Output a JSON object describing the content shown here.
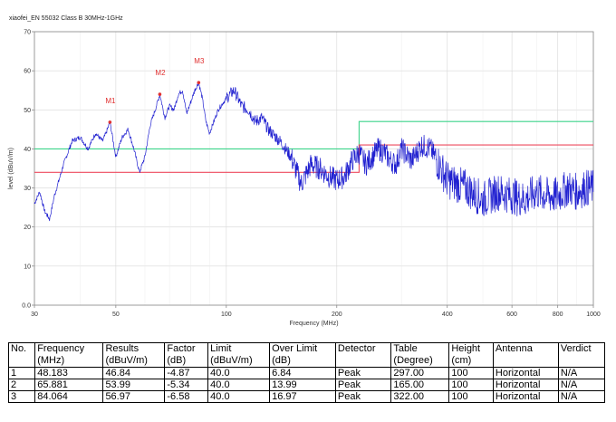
{
  "chart_data": {
    "type": "line",
    "title": "xiaofei_EN 55032 Class B 30MHz-1GHz",
    "xlabel": "Frequency (MHz)",
    "ylabel": "level (dBuV/m)",
    "xscale": "log",
    "xlim": [
      30,
      1000
    ],
    "ylim": [
      0,
      70
    ],
    "yticks": [
      0,
      10,
      20,
      30,
      40,
      50,
      60,
      70
    ],
    "xticks": [
      30,
      50,
      100,
      200,
      400,
      600,
      800,
      1000
    ],
    "ytick_labels": [
      "0.0",
      "10",
      "20",
      "30",
      "40",
      "50",
      "60",
      "70"
    ],
    "xtick_labels": [
      "30",
      "50",
      "100",
      "200",
      "400",
      "600",
      "800",
      "1000"
    ],
    "grid": true,
    "colors": {
      "trace": "#2020d0",
      "limit": "#3cd48a",
      "limit_margin": "#ee4a5e",
      "marker": "#e03030"
    },
    "series": [
      {
        "kind": "trace",
        "x": [
          30,
          31,
          32,
          33,
          34,
          35,
          36,
          38,
          40,
          42,
          44,
          46,
          47,
          48.183,
          50,
          52,
          54,
          56,
          58,
          60,
          62,
          64,
          65.881,
          68,
          70,
          72,
          74,
          76,
          78,
          80,
          82,
          84.064,
          86,
          88,
          90,
          95,
          100,
          105,
          110,
          115,
          120,
          125,
          130,
          140,
          150,
          160,
          170,
          180,
          190,
          200,
          210,
          220,
          230,
          240,
          250,
          260,
          270,
          280,
          290,
          300,
          320,
          340,
          360,
          380,
          400,
          450,
          500,
          550,
          600,
          650,
          700,
          750,
          800,
          850,
          900,
          950,
          1000
        ],
        "y": [
          26,
          29,
          24,
          22,
          28,
          32,
          36,
          42,
          43,
          40,
          44,
          42,
          44,
          46.84,
          38,
          43,
          45,
          40,
          34,
          38,
          46,
          50,
          53.99,
          48,
          51,
          50,
          54,
          55,
          49,
          52,
          55,
          56.97,
          53,
          47,
          44,
          50,
          53,
          55,
          51,
          50,
          47,
          48,
          45,
          42,
          38,
          31,
          36,
          35,
          33,
          32,
          33,
          37,
          39,
          36,
          38,
          40,
          39,
          37,
          36,
          40,
          37,
          41,
          40,
          36,
          32,
          30,
          27,
          29,
          28,
          27,
          29,
          28,
          28,
          30,
          29,
          30,
          30
        ]
      },
      {
        "kind": "limit",
        "x": [
          30,
          230,
          230,
          1000
        ],
        "y": [
          40,
          40,
          47,
          47
        ]
      },
      {
        "kind": "limit_margin",
        "x": [
          30,
          230,
          230,
          1000
        ],
        "y": [
          34,
          34,
          41,
          41
        ]
      }
    ],
    "markers": [
      {
        "label": "M1",
        "x": 48.183,
        "y": 46.84
      },
      {
        "label": "M2",
        "x": 65.881,
        "y": 53.99
      },
      {
        "label": "M3",
        "x": 84.064,
        "y": 56.97
      }
    ]
  },
  "table": {
    "headers": [
      [
        "No.",
        ""
      ],
      [
        "Frequency",
        "(MHz)"
      ],
      [
        "Results",
        "(dBuV/m)"
      ],
      [
        "Factor",
        "(dB)"
      ],
      [
        "Limit",
        "(dBuV/m)"
      ],
      [
        "Over Limit",
        "(dB)"
      ],
      [
        "Detector",
        ""
      ],
      [
        "Table",
        "(Degree)"
      ],
      [
        "Height",
        "(cm)"
      ],
      [
        "Antenna",
        ""
      ],
      [
        "Verdict",
        ""
      ]
    ],
    "rows": [
      [
        "1",
        "48.183",
        "46.84",
        "-4.87",
        "40.0",
        "6.84",
        "Peak",
        "297.00",
        "100",
        "Horizontal",
        "N/A"
      ],
      [
        "2",
        "65.881",
        "53.99",
        "-5.34",
        "40.0",
        "13.99",
        "Peak",
        "165.00",
        "100",
        "Horizontal",
        "N/A"
      ],
      [
        "3",
        "84.064",
        "56.97",
        "-6.58",
        "40.0",
        "16.97",
        "Peak",
        "322.00",
        "100",
        "Horizontal",
        "N/A"
      ]
    ]
  }
}
